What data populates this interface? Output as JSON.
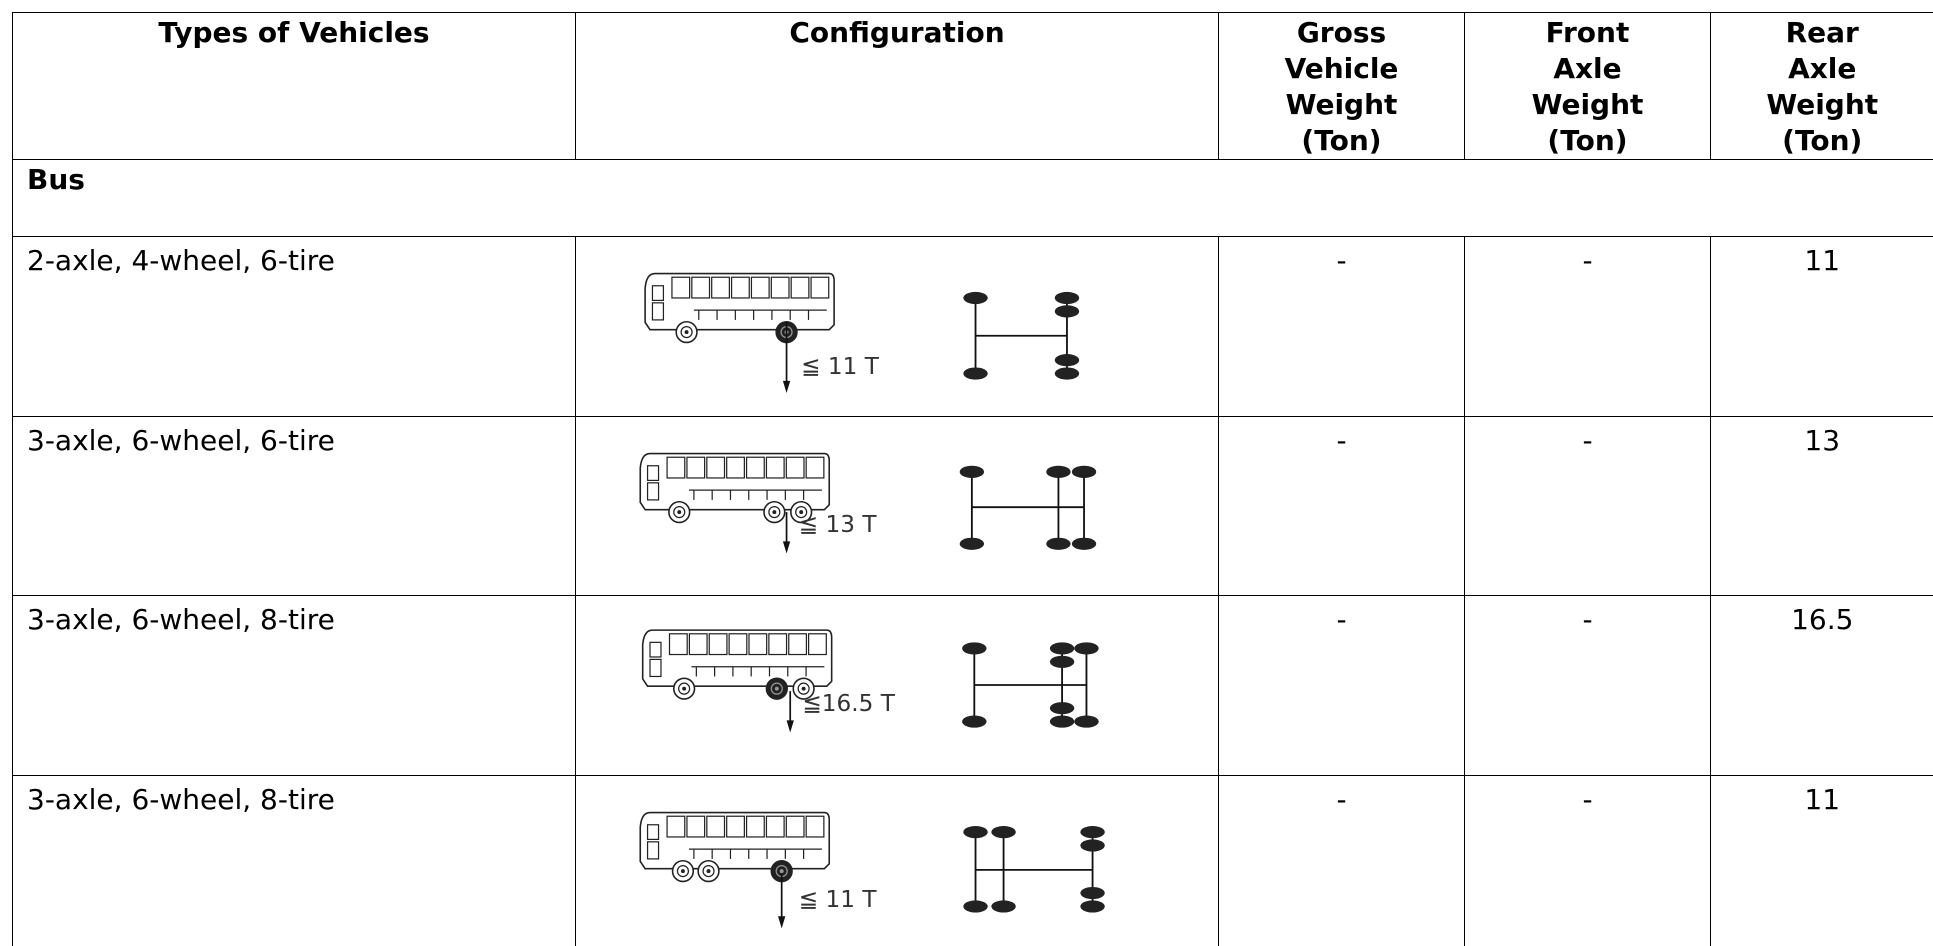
{
  "table": {
    "header": [
      "Types of Vehicles",
      "Configuration",
      "Gross Vehicle Weight (Ton)",
      "Front Axle Weight (Ton)",
      "Rear Axle Weight (Ton)"
    ],
    "section": "Bus",
    "rows": [
      {
        "type": "2-axle, 4-wheel, 6-tire",
        "config_label": "≦ 11 T",
        "gross": "-",
        "front": "-",
        "rear": 11
      },
      {
        "type": "3-axle, 6-wheel, 6-tire",
        "config_label": "≦ 13 T",
        "gross": "-",
        "front": "-",
        "rear": 13
      },
      {
        "type": "3-axle, 6-wheel, 8-tire",
        "config_label": "≦16.5 T",
        "gross": "-",
        "front": "-",
        "rear": 16.5
      },
      {
        "type": "3-axle, 6-wheel, 8-tire",
        "config_label": "≦ 11 T",
        "gross": "-",
        "front": "-",
        "rear": 11
      }
    ]
  }
}
